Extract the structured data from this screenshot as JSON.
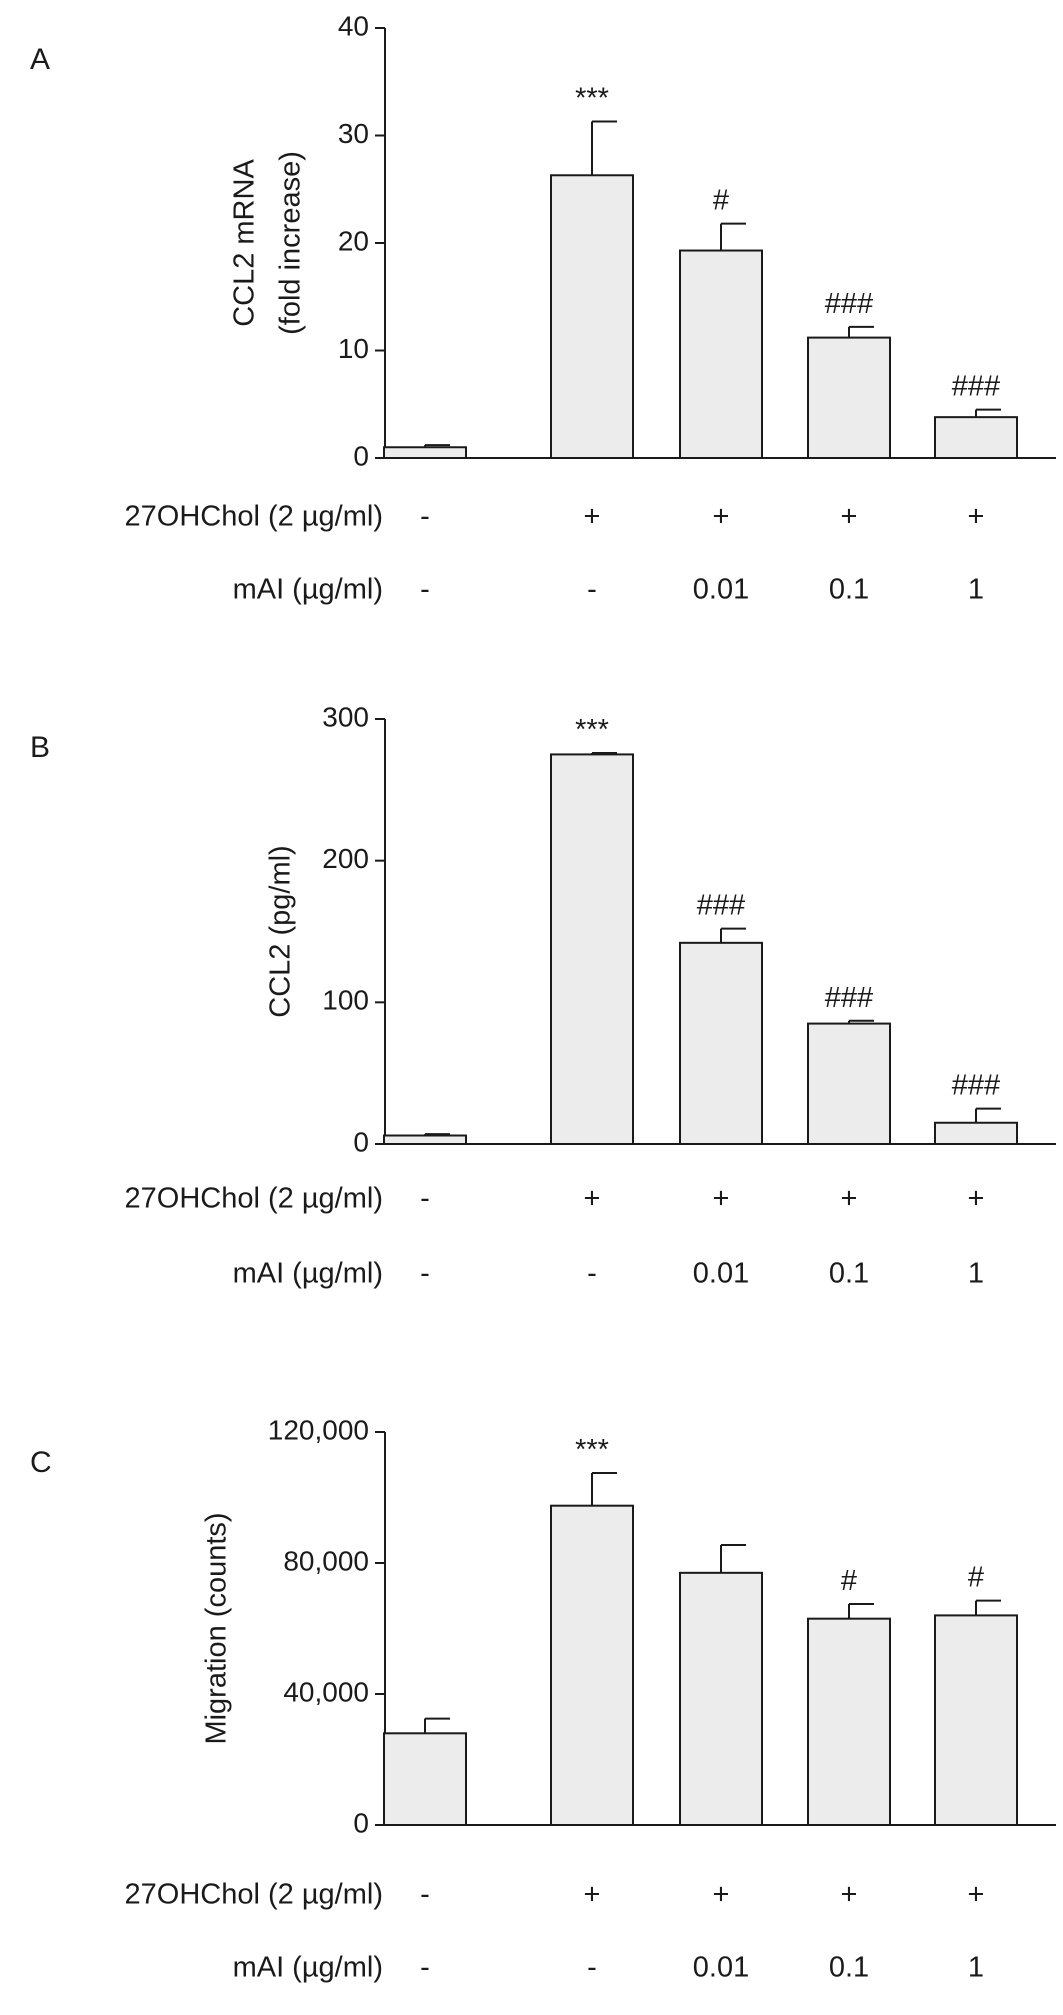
{
  "chart_data": [
    {
      "type": "bar",
      "panel": "A",
      "ylabel": [
        "CCL2 mRNA",
        "(fold increase)"
      ],
      "ylim": [
        0,
        40
      ],
      "yticks": [
        0,
        10,
        20,
        30,
        40
      ],
      "tick_labels": [
        "0",
        "10",
        "20",
        "30",
        "40"
      ],
      "values": [
        1.0,
        26.3,
        19.3,
        11.2,
        3.8
      ],
      "errors": [
        0.2,
        5.0,
        2.5,
        1.0,
        0.7
      ],
      "annotations": [
        "",
        "***",
        "#",
        "###",
        "###"
      ],
      "bar_color": "#ececec",
      "rows": [
        {
          "label": "27OHChol (2 µg/ml)",
          "values": [
            "-",
            "+",
            "+",
            "+",
            "+"
          ]
        },
        {
          "label": "mAI (µg/ml)",
          "values": [
            "-",
            "-",
            "0.01",
            "0.1",
            "1"
          ]
        }
      ]
    },
    {
      "type": "bar",
      "panel": "B",
      "ylabel": [
        "CCL2 (pg/ml)"
      ],
      "ylim": [
        0,
        300
      ],
      "yticks": [
        0,
        100,
        200,
        300
      ],
      "tick_labels": [
        "0",
        "100",
        "200",
        "300"
      ],
      "values": [
        6,
        275,
        142,
        85,
        15
      ],
      "errors": [
        1,
        1,
        10,
        2,
        10
      ],
      "annotations": [
        "",
        "***",
        "###",
        "###",
        "###"
      ],
      "bar_color": "#ececec",
      "rows": [
        {
          "label": "27OHChol (2 µg/ml)",
          "values": [
            "-",
            "+",
            "+",
            "+",
            "+"
          ]
        },
        {
          "label": "mAI (µg/ml)",
          "values": [
            "-",
            "-",
            "0.01",
            "0.1",
            "1"
          ]
        }
      ]
    },
    {
      "type": "bar",
      "panel": "C",
      "ylabel": [
        "Migration (counts)"
      ],
      "ylim": [
        0,
        120000
      ],
      "yticks": [
        0,
        40000,
        80000,
        120000
      ],
      "tick_labels": [
        "0",
        "40,000",
        "80,000",
        "120,000"
      ],
      "values": [
        28000,
        97500,
        77000,
        63000,
        64000
      ],
      "errors": [
        4500,
        10000,
        8500,
        4500,
        4500
      ],
      "annotations": [
        "",
        "***",
        "",
        "#",
        "#"
      ],
      "bar_color": "#ececec",
      "rows": [
        {
          "label": "27OHChol (2 µg/ml)",
          "values": [
            "-",
            "+",
            "+",
            "+",
            "+"
          ]
        },
        {
          "label": "mAI (µg/ml)",
          "values": [
            "-",
            "-",
            "0.01",
            "0.1",
            "1"
          ]
        }
      ]
    }
  ]
}
